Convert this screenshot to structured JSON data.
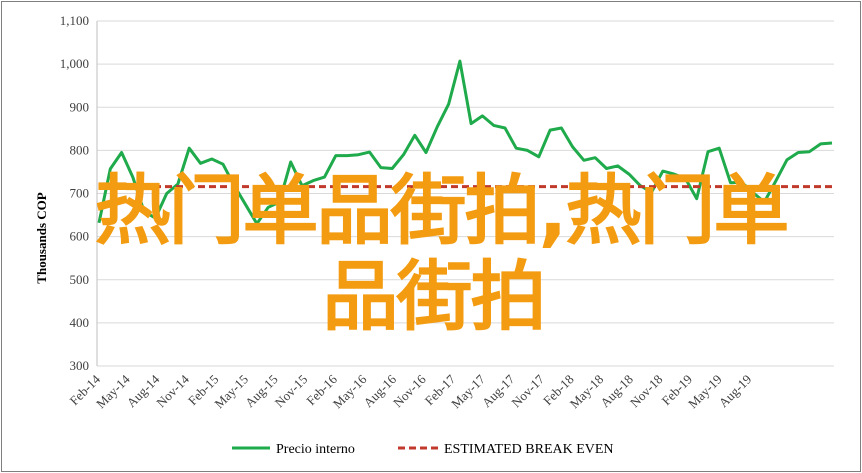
{
  "chart_data": {
    "type": "line",
    "ylabel": "Thousands COP",
    "ylim": [
      300,
      1100
    ],
    "yticks": [
      300,
      400,
      500,
      600,
      700,
      800,
      900,
      1000,
      1100
    ],
    "ytick_labels": [
      "300",
      "400",
      "500",
      "600",
      "700",
      "800",
      "900",
      "1,000",
      "1,100"
    ],
    "xtick_labels": [
      "Feb-14",
      "May-14",
      "Aug-14",
      "Nov-14",
      "Feb-15",
      "May-15",
      "Aug-15",
      "Nov-15",
      "Feb-16",
      "May-16",
      "Aug-16",
      "Nov-16",
      "Feb-17",
      "May-17",
      "Aug-17",
      "Nov-17",
      "Feb-18",
      "May-18",
      "Aug-18",
      "Nov-18",
      "Feb-19",
      "May-19",
      "Aug-19"
    ],
    "grid": true,
    "legend_position": "bottom",
    "series": [
      {
        "name": "Precio interno",
        "color": "#1faa4b",
        "style": "solid",
        "values": [
          632,
          757,
          795,
          738,
          658,
          643,
          700,
          722,
          805,
          770,
          780,
          768,
          718,
          674,
          630,
          668,
          680,
          773,
          718,
          730,
          738,
          788,
          788,
          790,
          796,
          760,
          758,
          790,
          835,
          795,
          855,
          907,
          1007,
          862,
          880,
          858,
          852,
          805,
          800,
          785,
          847,
          852,
          808,
          777,
          783,
          758,
          764,
          745,
          718,
          703,
          752,
          745,
          735,
          688,
          797,
          805,
          725,
          726,
          702,
          680,
          728,
          778,
          795,
          797,
          815,
          817
        ]
      },
      {
        "name": "ESTIMATED BREAK EVEN",
        "color": "#c0392b",
        "style": "dashed",
        "values": [
          716,
          716
        ]
      }
    ]
  },
  "overlay": {
    "line1": "热门单品街拍,热门单",
    "line2": "品街拍"
  }
}
